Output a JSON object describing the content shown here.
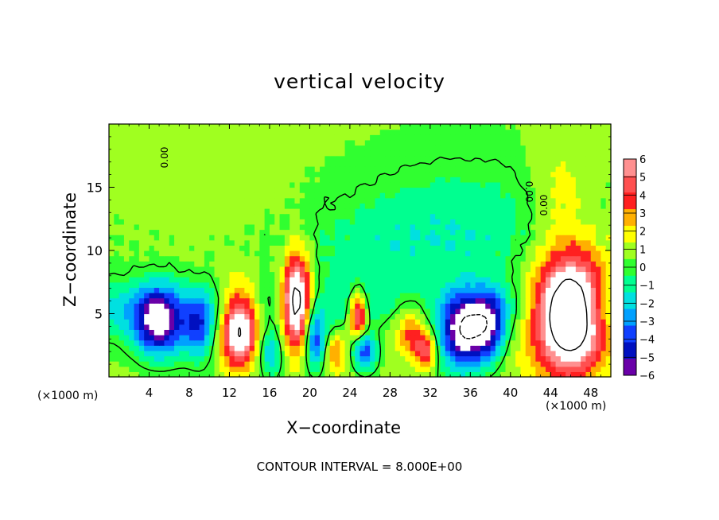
{
  "chart_data": {
    "type": "heatmap",
    "title": "vertical velocity",
    "xlabel": "X−coordinate",
    "ylabel": "Z−coordinate",
    "x_unit_label": "(×1000 m)",
    "xlim": [
      0,
      50
    ],
    "ylim": [
      0,
      20
    ],
    "x_ticks": [
      "4",
      "8",
      "12",
      "16",
      "20",
      "24",
      "28",
      "32",
      "36",
      "40",
      "44",
      "48"
    ],
    "y_ticks": [
      "5",
      "10",
      "15"
    ],
    "colorbar": {
      "ticks": [
        "6",
        "5",
        "4",
        "3",
        "2",
        "1",
        "0",
        "−1",
        "−2",
        "−3",
        "−4",
        "−5",
        "−6"
      ],
      "range": [
        -6,
        6
      ],
      "colors": [
        "#6a00a8",
        "#0010c0",
        "#1040ff",
        "#00a0ff",
        "#00e0e0",
        "#00ff90",
        "#30ff30",
        "#a0ff20",
        "#ffff00",
        "#ffb000",
        "#ff2020",
        "#ff5050",
        "#ff9090"
      ]
    },
    "contour_labels": [
      "0.00",
      "0.00",
      "0.00"
    ],
    "footer": "CONTOUR INTERVAL = 8.000E+00",
    "features": [
      {
        "x": 5,
        "z": 4.5,
        "w": 2.6,
        "h": 2.8,
        "amp": -8,
        "rot": 0.2
      },
      {
        "x": 13,
        "z": 4,
        "w": 1.9,
        "h": 3.2,
        "amp": 9,
        "rot": 0
      },
      {
        "x": 18.7,
        "z": 6,
        "w": 1.4,
        "h": 3.8,
        "amp": 9,
        "rot": 0
      },
      {
        "x": 20.5,
        "z": 3,
        "w": 1.2,
        "h": 2.5,
        "amp": -5,
        "rot": 0
      },
      {
        "x": 22.5,
        "z": 2,
        "w": 1.0,
        "h": 1.5,
        "amp": 3,
        "rot": 0
      },
      {
        "x": 24.8,
        "z": 5,
        "w": 0.9,
        "h": 1.8,
        "amp": 7,
        "rot": 0
      },
      {
        "x": 25.5,
        "z": 2,
        "w": 1.2,
        "h": 1.5,
        "amp": -5,
        "rot": 0
      },
      {
        "x": 31.5,
        "z": 2.2,
        "w": 1.1,
        "h": 1.6,
        "amp": 5,
        "rot": 0
      },
      {
        "x": 30,
        "z": 3.5,
        "w": 1.2,
        "h": 1.8,
        "amp": 3,
        "rot": 0
      },
      {
        "x": 35.5,
        "z": 3.5,
        "w": 2.4,
        "h": 2.8,
        "amp": -8,
        "rot": -0.2
      },
      {
        "x": 38,
        "z": 4,
        "w": 1.5,
        "h": 2.5,
        "amp": -4,
        "rot": 0
      },
      {
        "x": 46,
        "z": 5,
        "w": 3.6,
        "h": 4.8,
        "amp": 11,
        "rot": 0
      },
      {
        "x": 9,
        "z": 4,
        "w": 1.5,
        "h": 2.5,
        "amp": -4,
        "rot": 0
      },
      {
        "x": 16,
        "z": 2,
        "w": 1.3,
        "h": 1.8,
        "amp": -3,
        "rot": 0
      },
      {
        "x": 28,
        "z": 4,
        "w": 2.5,
        "h": 3,
        "amp": 1,
        "rot": 0
      },
      {
        "x": 45,
        "z": 15,
        "w": 3,
        "h": 4,
        "amp": 1.5,
        "rot": 0
      },
      {
        "x": 36,
        "z": 12,
        "w": 10,
        "h": 5,
        "amp": -1.8,
        "rot": 0
      },
      {
        "x": 25,
        "z": 10,
        "w": 8,
        "h": 4,
        "amp": -1.2,
        "rot": 0
      },
      {
        "x": 10,
        "z": 15,
        "w": 6,
        "h": 4,
        "amp": 0.8,
        "rot": 0
      }
    ]
  }
}
